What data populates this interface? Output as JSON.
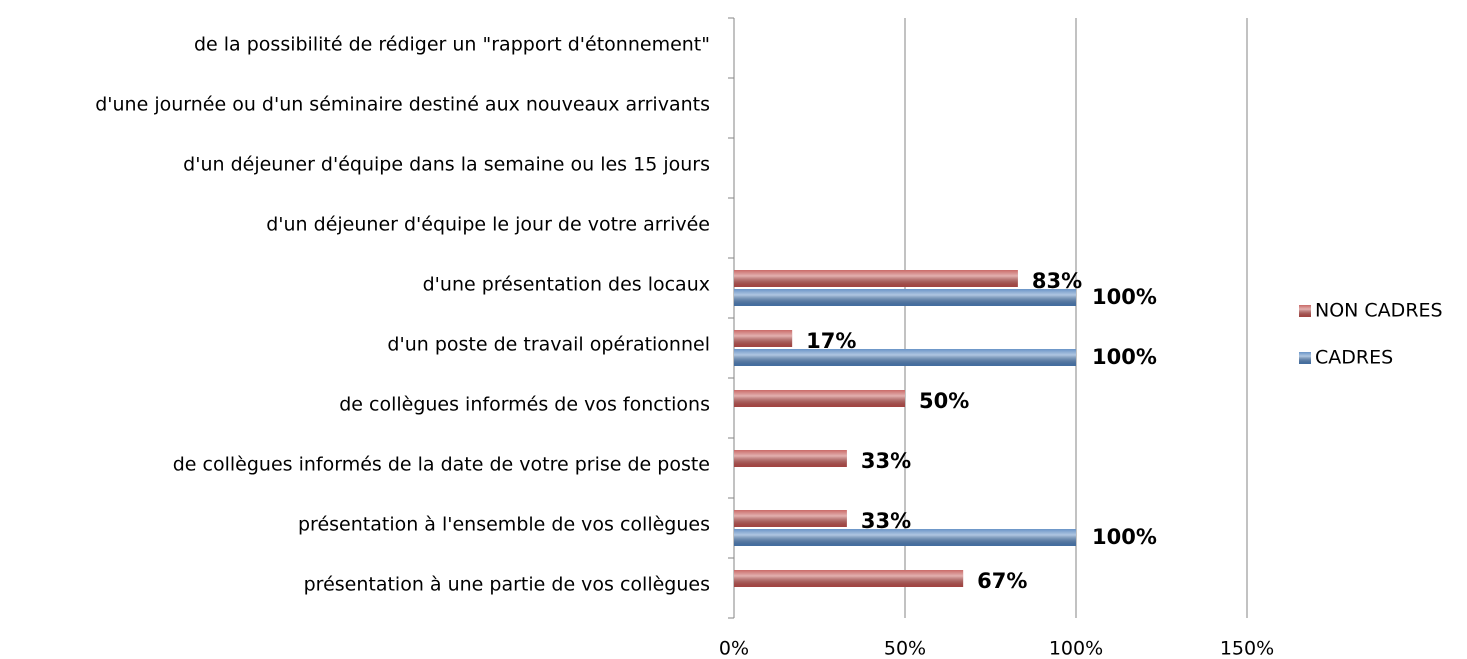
{
  "chart_data": {
    "type": "bar",
    "orientation": "horizontal",
    "categories": [
      "de la possibilité de rédiger un \"rapport d'étonnement\"",
      "d'une journée ou d'un séminaire destiné aux nouveaux arrivants",
      "d'un déjeuner d'équipe dans la semaine ou les 15 jours",
      "d'un déjeuner d'équipe le jour de votre arrivée",
      "d'une présentation des locaux",
      "d'un poste de travail opérationnel",
      "de collègues informés de vos fonctions",
      "de collègues informés de la date de votre prise de poste",
      "présentation à l'ensemble de vos collègues",
      "présentation à une partie de vos collègues"
    ],
    "series": [
      {
        "name": "NON CADRES",
        "color": "#c0504d",
        "values": [
          null,
          null,
          null,
          null,
          83,
          17,
          50,
          33,
          33,
          67
        ],
        "value_labels": [
          null,
          null,
          null,
          null,
          "83%",
          "17%",
          "50%",
          "33%",
          "33%",
          "67%"
        ]
      },
      {
        "name": "CADRES",
        "color": "#4f81bd",
        "values": [
          null,
          null,
          null,
          null,
          100,
          100,
          null,
          null,
          100,
          null
        ],
        "value_labels": [
          null,
          null,
          null,
          null,
          "100%",
          "100%",
          null,
          null,
          "100%",
          null
        ]
      }
    ],
    "xlim": [
      0,
      150
    ],
    "xticks": [
      {
        "value": 0,
        "label": "0%"
      },
      {
        "value": 50,
        "label": "50%"
      },
      {
        "value": 100,
        "label": "100%"
      },
      {
        "value": 150,
        "label": "150%"
      }
    ],
    "grid": true,
    "legend": "right"
  }
}
